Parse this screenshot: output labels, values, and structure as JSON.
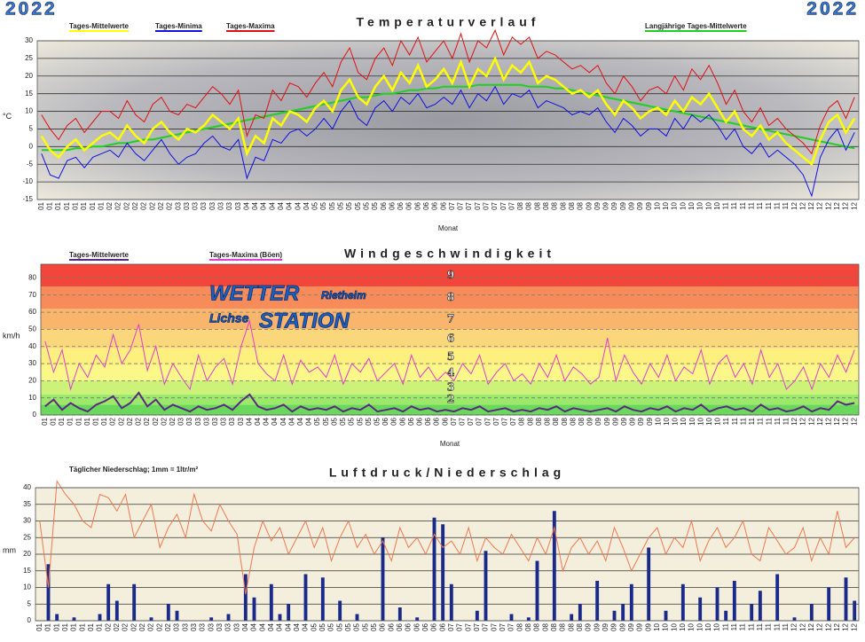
{
  "header": {
    "year_left": "2022",
    "year_right": "2022"
  },
  "chart_data": [
    {
      "type": "line",
      "title": "Temperaturverlauf",
      "y_label": "°C",
      "x_label": "Monat",
      "categories": [
        "01",
        "01",
        "01",
        "01",
        "01",
        "01",
        "01",
        "01",
        "02",
        "02",
        "02",
        "02",
        "02",
        "02",
        "02",
        "02",
        "03",
        "03",
        "03",
        "03",
        "03",
        "03",
        "03",
        "03",
        "04",
        "04",
        "04",
        "04",
        "04",
        "04",
        "04",
        "04",
        "05",
        "05",
        "05",
        "05",
        "05",
        "05",
        "05",
        "05",
        "06",
        "06",
        "06",
        "06",
        "06",
        "06",
        "06",
        "06",
        "07",
        "07",
        "07",
        "07",
        "07",
        "07",
        "07",
        "07",
        "08",
        "08",
        "08",
        "08",
        "08",
        "08",
        "08",
        "08",
        "09",
        "09",
        "09",
        "09",
        "09",
        "09",
        "09",
        "09",
        "10",
        "10",
        "10",
        "10",
        "10",
        "10",
        "10",
        "10",
        "11",
        "11",
        "11",
        "11",
        "11",
        "11",
        "11",
        "11",
        "12",
        "12",
        "12",
        "12",
        "12",
        "12",
        "12",
        "12"
      ],
      "ylim": [
        -15,
        30
      ],
      "yticks": [
        -15,
        -10,
        -5,
        0,
        5,
        10,
        15,
        20,
        25,
        30
      ],
      "grid": true,
      "series": [
        {
          "name": "Tages-Mittelwerte",
          "color": "#ffff00",
          "values": [
            3,
            -1,
            -3,
            0,
            2,
            -1,
            1,
            3,
            4,
            2,
            6,
            3,
            1,
            5,
            7,
            4,
            2,
            5,
            4,
            6,
            9,
            7,
            5,
            8,
            -2,
            3,
            1,
            8,
            6,
            10,
            9,
            7,
            11,
            13,
            10,
            16,
            19,
            14,
            12,
            17,
            20,
            16,
            21,
            18,
            23,
            17,
            19,
            22,
            18,
            24,
            17,
            22,
            20,
            25,
            19,
            23,
            21,
            24,
            18,
            20,
            19,
            17,
            15,
            16,
            14,
            16,
            12,
            9,
            13,
            11,
            8,
            10,
            11,
            9,
            13,
            10,
            14,
            12,
            15,
            11,
            7,
            10,
            5,
            3,
            6,
            2,
            4,
            1,
            -1,
            -3,
            -5,
            2,
            7,
            9,
            4,
            8
          ]
        },
        {
          "name": "Tages-Minima",
          "color": "#1010e0",
          "values": [
            -2,
            -8,
            -9,
            -4,
            -3,
            -6,
            -3,
            -2,
            -1,
            -3,
            1,
            -2,
            -4,
            -1,
            2,
            -2,
            -5,
            -3,
            -2,
            1,
            3,
            0,
            -1,
            2,
            -9,
            -3,
            -4,
            2,
            1,
            4,
            5,
            3,
            5,
            8,
            5,
            10,
            13,
            8,
            6,
            11,
            13,
            10,
            14,
            12,
            15,
            11,
            12,
            14,
            12,
            16,
            11,
            15,
            13,
            17,
            12,
            15,
            14,
            16,
            11,
            13,
            12,
            11,
            9,
            10,
            9,
            11,
            7,
            4,
            8,
            6,
            3,
            5,
            5,
            3,
            8,
            5,
            9,
            7,
            9,
            6,
            2,
            5,
            0,
            -2,
            1,
            -3,
            -1,
            -3,
            -5,
            -8,
            -14,
            -3,
            2,
            5,
            -1,
            4
          ]
        },
        {
          "name": "Tages-Maxima",
          "color": "#e01010",
          "values": [
            9,
            5,
            2,
            6,
            8,
            4,
            7,
            10,
            10,
            8,
            13,
            9,
            7,
            12,
            14,
            10,
            9,
            12,
            11,
            14,
            17,
            15,
            12,
            16,
            3,
            9,
            8,
            16,
            13,
            18,
            17,
            14,
            18,
            21,
            17,
            24,
            28,
            21,
            19,
            25,
            28,
            23,
            30,
            26,
            31,
            24,
            27,
            30,
            25,
            32,
            24,
            30,
            28,
            33,
            26,
            31,
            29,
            31,
            25,
            27,
            26,
            24,
            22,
            23,
            21,
            23,
            18,
            15,
            20,
            17,
            13,
            16,
            17,
            15,
            20,
            16,
            22,
            19,
            23,
            18,
            12,
            16,
            10,
            7,
            11,
            6,
            8,
            5,
            3,
            1,
            -2,
            6,
            11,
            13,
            8,
            14
          ]
        },
        {
          "name": "Langjährige Tages-Mittelwerte",
          "color": "#20d020",
          "values": [
            -1,
            -1,
            -1,
            -1,
            -0.5,
            -0.5,
            0,
            0,
            0.5,
            1,
            1,
            1.5,
            2,
            2,
            2.5,
            3,
            3.5,
            4,
            4.5,
            5,
            5.5,
            6,
            6.5,
            7,
            7.5,
            8,
            8.5,
            9,
            9.5,
            10,
            10.5,
            11,
            11.5,
            12,
            12.5,
            13,
            13.5,
            14,
            14,
            14.5,
            15,
            15,
            15.5,
            16,
            16,
            16.5,
            16.5,
            17,
            17,
            17,
            17,
            17.5,
            17.5,
            17.5,
            17.5,
            17.5,
            17.5,
            17,
            17,
            17,
            16.5,
            16.5,
            16,
            15.5,
            15,
            14.5,
            14,
            13.5,
            13,
            12.5,
            12,
            11.5,
            11,
            10.5,
            10,
            9.5,
            9,
            8.5,
            8,
            7.5,
            7,
            6.5,
            6,
            5.5,
            5,
            4.5,
            4,
            3.5,
            3,
            2.5,
            2,
            1.5,
            1,
            0.5,
            0,
            -0.5
          ]
        }
      ]
    },
    {
      "type": "line",
      "title": "Windgeschwindigkeit",
      "y_label": "km/h",
      "x_label": "Monat",
      "categories": [
        "01",
        "01",
        "01",
        "01",
        "01",
        "01",
        "01",
        "01",
        "02",
        "02",
        "02",
        "02",
        "02",
        "02",
        "02",
        "02",
        "03",
        "03",
        "03",
        "03",
        "03",
        "03",
        "03",
        "03",
        "04",
        "04",
        "04",
        "04",
        "04",
        "04",
        "04",
        "04",
        "05",
        "05",
        "05",
        "05",
        "05",
        "05",
        "05",
        "05",
        "06",
        "06",
        "06",
        "06",
        "06",
        "06",
        "06",
        "06",
        "07",
        "07",
        "07",
        "07",
        "07",
        "07",
        "07",
        "07",
        "08",
        "08",
        "08",
        "08",
        "08",
        "08",
        "08",
        "08",
        "09",
        "09",
        "09",
        "09",
        "09",
        "09",
        "09",
        "09",
        "10",
        "10",
        "10",
        "10",
        "10",
        "10",
        "10",
        "10",
        "11",
        "11",
        "11",
        "11",
        "11",
        "11",
        "11",
        "11",
        "12",
        "12",
        "12",
        "12",
        "12",
        "12",
        "12",
        "12"
      ],
      "ylim": [
        0,
        88
      ],
      "yticks": [
        0,
        10,
        20,
        30,
        40,
        50,
        60,
        70,
        80
      ],
      "grid": true,
      "bands": [
        {
          "from": 0,
          "to": 6,
          "color": "#6ad85a"
        },
        {
          "from": 6,
          "to": 12,
          "color": "#9be86a",
          "label": "2"
        },
        {
          "from": 12,
          "to": 20,
          "color": "#cdf27a",
          "label": "3"
        },
        {
          "from": 20,
          "to": 29,
          "color": "#fbf788",
          "label": "4"
        },
        {
          "from": 29,
          "to": 39,
          "color": "#fdf07e",
          "label": "5"
        },
        {
          "from": 39,
          "to": 50,
          "color": "#fbd77c",
          "label": "6"
        },
        {
          "from": 50,
          "to": 62,
          "color": "#f9b56c",
          "label": "7"
        },
        {
          "from": 62,
          "to": 75,
          "color": "#f78c5a",
          "label": "8"
        },
        {
          "from": 75,
          "to": 88,
          "color": "#f2463a",
          "label": "9"
        }
      ],
      "logo": {
        "line1": "WETTER",
        "place1": "Rietheim",
        "place2": "Lichse",
        "line2": "STATION"
      },
      "series": [
        {
          "name": "Tages-Mittelwerte",
          "color": "#5a2a80",
          "values": [
            5,
            9,
            3,
            7,
            4,
            2,
            6,
            8,
            11,
            4,
            7,
            13,
            5,
            9,
            3,
            6,
            4,
            2,
            5,
            3,
            4,
            6,
            3,
            8,
            12,
            5,
            3,
            4,
            6,
            2,
            5,
            3,
            4,
            3,
            5,
            2,
            4,
            3,
            6,
            2,
            3,
            4,
            2,
            5,
            3,
            4,
            2,
            3,
            2,
            4,
            3,
            5,
            2,
            3,
            4,
            2,
            3,
            2,
            4,
            3,
            5,
            2,
            4,
            3,
            2,
            3,
            4,
            2,
            5,
            3,
            2,
            4,
            3,
            5,
            2,
            4,
            3,
            6,
            2,
            4,
            5,
            3,
            4,
            2,
            6,
            3,
            4,
            2,
            3,
            5,
            2,
            4,
            3,
            8,
            6,
            7
          ]
        },
        {
          "name": "Tages-Maxima (Böen)",
          "color": "#e040d0",
          "values": [
            43,
            25,
            38,
            15,
            30,
            22,
            35,
            28,
            47,
            30,
            38,
            53,
            26,
            40,
            18,
            30,
            22,
            15,
            35,
            20,
            28,
            33,
            18,
            40,
            55,
            30,
            24,
            20,
            35,
            18,
            32,
            25,
            28,
            22,
            35,
            18,
            30,
            25,
            33,
            20,
            25,
            30,
            18,
            35,
            22,
            28,
            20,
            25,
            20,
            30,
            24,
            35,
            18,
            25,
            30,
            20,
            24,
            18,
            30,
            22,
            35,
            20,
            28,
            24,
            18,
            22,
            45,
            20,
            35,
            25,
            18,
            30,
            22,
            35,
            20,
            28,
            24,
            38,
            18,
            30,
            35,
            22,
            30,
            18,
            38,
            22,
            30,
            15,
            20,
            28,
            15,
            30,
            22,
            35,
            25,
            38
          ]
        }
      ]
    },
    {
      "type": "combo",
      "title": "Luftdruck/Niederschlag",
      "y_label": "mm",
      "note": "Täglicher Niederschlag; 1mm = 1ltr/m²",
      "categories": [
        "01",
        "01",
        "01",
        "01",
        "01",
        "01",
        "01",
        "01",
        "02",
        "02",
        "02",
        "02",
        "02",
        "02",
        "02",
        "02",
        "03",
        "03",
        "03",
        "03",
        "03",
        "03",
        "03",
        "03",
        "04",
        "04",
        "04",
        "04",
        "04",
        "04",
        "04",
        "04",
        "05",
        "05",
        "05",
        "05",
        "05",
        "05",
        "05",
        "05",
        "06",
        "06",
        "06",
        "06",
        "06",
        "06",
        "06",
        "06",
        "07",
        "07",
        "07",
        "07",
        "07",
        "07",
        "07",
        "07",
        "08",
        "08",
        "08",
        "08",
        "08",
        "08",
        "08",
        "08",
        "09",
        "09",
        "09",
        "09",
        "09",
        "09",
        "09",
        "09",
        "10",
        "10",
        "10",
        "10",
        "10",
        "10",
        "10",
        "10",
        "11",
        "11",
        "11",
        "11",
        "11",
        "11",
        "11",
        "11",
        "12",
        "12",
        "12",
        "12",
        "12",
        "12",
        "12",
        "12"
      ],
      "ylim": [
        0,
        40
      ],
      "yticks": [
        0,
        5,
        10,
        15,
        20,
        25,
        30,
        35,
        40
      ],
      "grid": true,
      "series": [
        {
          "kind": "bar",
          "color": "#1a2a8a",
          "values": [
            0,
            17,
            2,
            0,
            1,
            0,
            0,
            2,
            11,
            6,
            0,
            11,
            0,
            1,
            0,
            5,
            3,
            0,
            0,
            0,
            1,
            0,
            2,
            0,
            14,
            7,
            0,
            11,
            2,
            5,
            0,
            14,
            0,
            13,
            0,
            6,
            0,
            2,
            0,
            0,
            25,
            0,
            4,
            0,
            1,
            0,
            31,
            29,
            11,
            0,
            0,
            3,
            21,
            0,
            0,
            2,
            0,
            1,
            18,
            0,
            33,
            0,
            2,
            5,
            0,
            12,
            0,
            3,
            5,
            11,
            0,
            22,
            0,
            3,
            0,
            11,
            0,
            7,
            0,
            10,
            3,
            12,
            0,
            5,
            9,
            0,
            14,
            0,
            1,
            0,
            5,
            0,
            10,
            0,
            13,
            6
          ]
        },
        {
          "kind": "line",
          "color": "#f07850",
          "values": [
            30,
            10,
            42,
            38,
            35,
            30,
            28,
            38,
            37,
            33,
            38,
            25,
            30,
            35,
            22,
            28,
            32,
            25,
            38,
            30,
            27,
            35,
            30,
            26,
            8,
            22,
            30,
            24,
            28,
            20,
            25,
            30,
            22,
            28,
            18,
            25,
            30,
            22,
            26,
            20,
            24,
            18,
            28,
            22,
            25,
            20,
            26,
            22,
            24,
            20,
            28,
            18,
            25,
            22,
            20,
            26,
            22,
            18,
            25,
            20,
            28,
            15,
            22,
            25,
            20,
            24,
            18,
            28,
            22,
            15,
            20,
            25,
            28,
            20,
            25,
            22,
            30,
            18,
            24,
            28,
            22,
            25,
            30,
            20,
            18,
            28,
            24,
            20,
            22,
            28,
            18,
            25,
            20,
            33,
            22,
            25
          ]
        }
      ]
    }
  ]
}
